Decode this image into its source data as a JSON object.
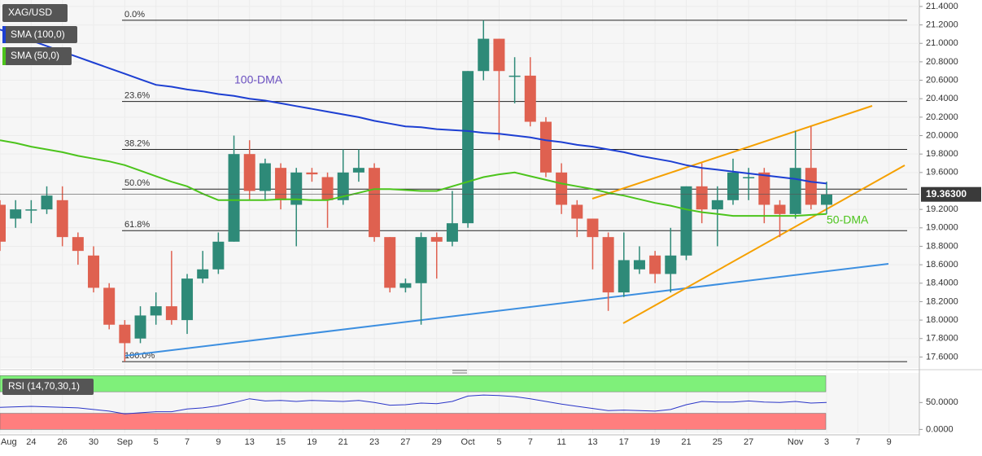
{
  "chart_data": {
    "type": "candlestick",
    "symbol": "XAG/USD",
    "categories": [
      "Aug",
      null,
      "24",
      null,
      "26",
      null,
      "30",
      null,
      "Sep",
      null,
      "5",
      null,
      "7",
      null,
      "9",
      null,
      "13",
      null,
      "15",
      null,
      "19",
      null,
      "21",
      null,
      "23",
      null,
      "27",
      null,
      "29",
      null,
      "Oct",
      null,
      "5",
      null,
      "7",
      null,
      "11",
      null,
      "13",
      null,
      "17",
      null,
      "19",
      null,
      "21",
      null,
      "25",
      null,
      "27",
      null,
      null,
      "Nov",
      null,
      "3",
      null,
      "7",
      null,
      "9"
    ],
    "open": [
      19.25,
      19.1,
      19.2,
      19.2,
      19.3,
      18.9,
      18.7,
      18.35,
      17.95,
      17.8,
      18.05,
      18.15,
      18.0,
      18.45,
      18.55,
      18.85,
      19.8,
      19.4,
      19.65,
      19.25,
      19.6,
      19.55,
      19.3,
      19.6,
      19.65,
      18.9,
      18.35,
      18.4,
      18.9,
      18.85,
      19.05,
      20.7,
      21.05,
      20.65,
      20.65,
      20.15,
      19.6,
      19.25,
      19.1,
      18.9,
      18.3,
      18.55,
      18.7,
      18.5,
      18.7,
      19.45,
      19.2,
      19.3,
      19.55,
      19.6,
      19.25,
      19.15,
      19.65,
      19.25,
      null,
      null,
      null,
      null
    ],
    "high": [
      19.3,
      19.3,
      19.3,
      19.45,
      19.45,
      18.95,
      18.8,
      18.4,
      18.0,
      18.15,
      18.3,
      18.75,
      18.5,
      18.75,
      18.95,
      20.0,
      19.95,
      19.75,
      19.7,
      19.65,
      19.65,
      19.6,
      19.85,
      19.85,
      19.7,
      18.9,
      18.45,
      18.95,
      18.95,
      19.4,
      20.7,
      21.25,
      21.05,
      20.85,
      20.85,
      20.2,
      19.7,
      19.3,
      19.1,
      18.95,
      18.95,
      18.8,
      18.75,
      19.0,
      19.45,
      19.7,
      19.45,
      19.75,
      19.65,
      19.65,
      19.3,
      20.05,
      20.1,
      19.5,
      null,
      null,
      null,
      null
    ],
    "low": [
      18.75,
      19.0,
      19.05,
      19.15,
      18.8,
      18.6,
      18.3,
      17.9,
      17.55,
      17.75,
      17.95,
      17.95,
      17.85,
      18.4,
      18.5,
      18.85,
      19.3,
      19.3,
      19.2,
      18.8,
      19.5,
      19.0,
      19.25,
      19.5,
      18.85,
      18.3,
      18.3,
      17.95,
      18.45,
      18.8,
      19.0,
      20.6,
      19.95,
      20.35,
      20.1,
      19.55,
      19.15,
      18.9,
      18.55,
      18.1,
      18.25,
      18.5,
      18.4,
      18.3,
      18.65,
      19.05,
      18.8,
      19.25,
      19.3,
      19.05,
      18.9,
      19.1,
      19.2,
      19.15,
      null,
      null,
      null,
      null
    ],
    "close": [
      18.85,
      19.2,
      19.2,
      19.35,
      18.9,
      18.75,
      18.35,
      17.95,
      17.75,
      18.05,
      18.15,
      18.0,
      18.45,
      18.55,
      18.85,
      19.8,
      19.4,
      19.7,
      19.3,
      19.6,
      19.58,
      19.3,
      19.6,
      19.65,
      18.9,
      18.35,
      18.4,
      18.9,
      18.85,
      19.05,
      20.7,
      21.05,
      20.7,
      20.65,
      20.15,
      19.6,
      19.25,
      19.1,
      18.9,
      18.3,
      18.65,
      18.65,
      18.5,
      18.7,
      19.45,
      19.2,
      19.3,
      19.6,
      19.55,
      19.25,
      19.15,
      19.65,
      19.25,
      19.363,
      null,
      null,
      null,
      null
    ],
    "up_color": "#2e8a78",
    "down_color": "#df6150",
    "series": [
      {
        "name": "SMA (100,0)",
        "color": "#1d3fd2",
        "values": [
          21.15,
          21.09,
          21.03,
          20.97,
          20.91,
          20.85,
          20.79,
          20.73,
          20.67,
          20.61,
          20.55,
          20.53,
          20.5,
          20.48,
          20.45,
          20.43,
          20.4,
          20.38,
          20.35,
          20.32,
          20.29,
          20.26,
          20.23,
          20.2,
          20.16,
          20.13,
          20.1,
          20.09,
          20.07,
          20.06,
          20.05,
          20.03,
          20.02,
          20.0,
          19.98,
          19.95,
          19.93,
          19.9,
          19.88,
          19.85,
          19.82,
          19.78,
          19.75,
          19.72,
          19.68,
          19.65,
          19.63,
          19.61,
          19.59,
          19.57,
          19.55,
          19.53,
          19.5,
          19.48,
          null,
          null,
          null,
          null
        ]
      },
      {
        "name": "SMA (50,0)",
        "color": "#4cc41c",
        "values": [
          19.95,
          19.92,
          19.88,
          19.85,
          19.82,
          19.78,
          19.75,
          19.72,
          19.68,
          19.62,
          19.56,
          19.5,
          19.45,
          19.37,
          19.3,
          19.3,
          19.3,
          19.3,
          19.31,
          19.31,
          19.3,
          19.3,
          19.34,
          19.38,
          19.42,
          19.42,
          19.41,
          19.4,
          19.4,
          19.45,
          19.5,
          19.55,
          19.58,
          19.6,
          19.56,
          19.52,
          19.48,
          19.45,
          19.42,
          19.38,
          19.35,
          19.31,
          19.27,
          19.24,
          19.2,
          19.17,
          19.15,
          19.13,
          19.13,
          19.13,
          19.13,
          19.13,
          19.14,
          19.15,
          null,
          null,
          null,
          null
        ]
      }
    ],
    "annotations": [
      "100-DMA",
      "50-DMA"
    ],
    "fib_levels": [
      {
        "label": "0.0%",
        "value": 21.25
      },
      {
        "label": "23.6%",
        "value": 20.37
      },
      {
        "label": "38.2%",
        "value": 19.85
      },
      {
        "label": "50.0%",
        "value": 19.42
      },
      {
        "label": "61.8%",
        "value": 18.97
      },
      {
        "label": "100.0%",
        "value": 17.55
      }
    ],
    "last_price": {
      "value": 19.363,
      "label": "19.36300"
    },
    "ylim": [
      17.48,
      21.47
    ],
    "yticks": [
      {
        "value": 21.4,
        "label": "21.4000"
      },
      {
        "value": 21.2,
        "label": "21.2000"
      },
      {
        "value": 21.0,
        "label": "21.0000"
      },
      {
        "value": 20.8,
        "label": "20.8000"
      },
      {
        "value": 20.6,
        "label": "20.6000"
      },
      {
        "value": 20.4,
        "label": "20.4000"
      },
      {
        "value": 20.2,
        "label": "20.2000"
      },
      {
        "value": 20.0,
        "label": "20.0000"
      },
      {
        "value": 19.8,
        "label": "19.8000"
      },
      {
        "value": 19.6,
        "label": "19.6000"
      },
      {
        "value": 19.2,
        "label": "19.2000"
      },
      {
        "value": 19.0,
        "label": "19.0000"
      },
      {
        "value": 18.8,
        "label": "18.8000"
      },
      {
        "value": 18.6,
        "label": "18.6000"
      },
      {
        "value": 18.4,
        "label": "18.4000"
      },
      {
        "value": 18.2,
        "label": "18.2000"
      },
      {
        "value": 18.0,
        "label": "18.0000"
      },
      {
        "value": 17.8,
        "label": "17.8000"
      },
      {
        "value": 17.6,
        "label": "17.6000"
      }
    ],
    "rsi": {
      "name": "RSI (14,70,30,1)",
      "color": "#2a35c8",
      "values": [
        41,
        42,
        43,
        42,
        41,
        40,
        37,
        34,
        29,
        31,
        33,
        33,
        38,
        40,
        44,
        50,
        57,
        53,
        54,
        52,
        54,
        53,
        52,
        54,
        50,
        45,
        46,
        49,
        48,
        52,
        62,
        64,
        63,
        61,
        57,
        52,
        47,
        43,
        39,
        35,
        36,
        35,
        34,
        37,
        46,
        52,
        51,
        51,
        53,
        51,
        50,
        52,
        49,
        50,
        null,
        null,
        null,
        null
      ],
      "overbought_band": [
        70,
        100
      ],
      "oversold_band": [
        0,
        30
      ],
      "ylim": [
        -7,
        105
      ],
      "yticks": [
        {
          "value": 50,
          "label": "50.0000"
        },
        {
          "value": 0,
          "label": "0.0000"
        }
      ]
    }
  }
}
